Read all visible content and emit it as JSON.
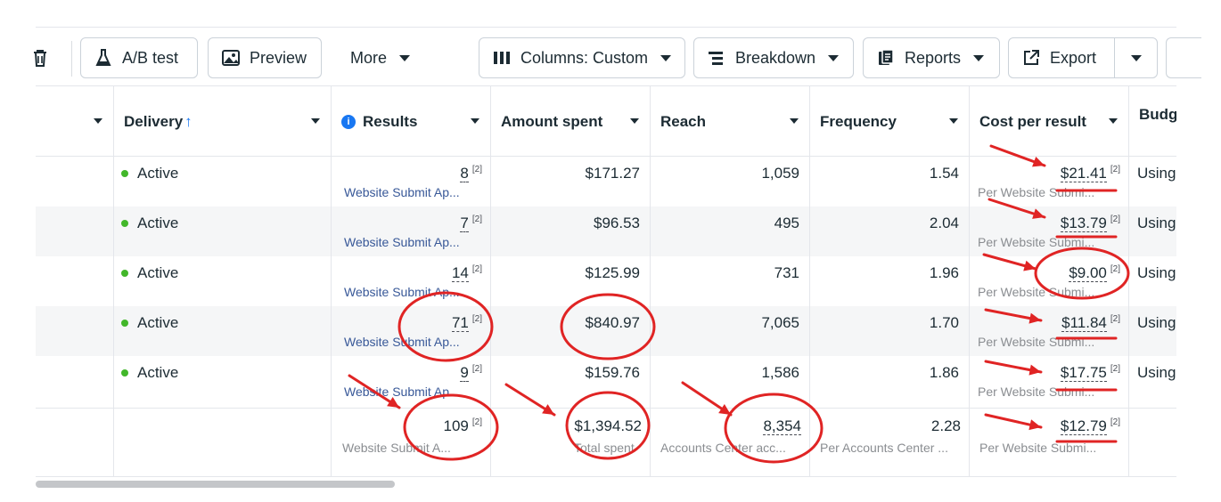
{
  "toolbar": {
    "ab_test": "A/B test",
    "preview": "Preview",
    "more": "More",
    "columns": "Columns: Custom",
    "breakdown": "Breakdown",
    "reports": "Reports",
    "export": "Export"
  },
  "headers": {
    "delivery": "Delivery",
    "delivery_arrow": "↑",
    "results": "Results",
    "amount_spent": "Amount spent",
    "reach": "Reach",
    "frequency": "Frequency",
    "cost_per_result": "Cost per result",
    "budget": "Budg"
  },
  "rows": [
    {
      "status": "Active",
      "results": "8",
      "results_label": "Website Submit Ap...",
      "spent": "$171.27",
      "reach": "1,059",
      "frequency": "1.54",
      "cpr": "$21.41",
      "cpr_label": "Per Website Submi...",
      "budget": "Using"
    },
    {
      "status": "Active",
      "results": "7",
      "results_label": "Website Submit Ap...",
      "spent": "$96.53",
      "reach": "495",
      "frequency": "2.04",
      "cpr": "$13.79",
      "cpr_label": "Per Website Submi...",
      "budget": "Using"
    },
    {
      "status": "Active",
      "results": "14",
      "results_label": "Website Submit Ap...",
      "spent": "$125.99",
      "reach": "731",
      "frequency": "1.96",
      "cpr": "$9.00",
      "cpr_label": "Per Website Submi...",
      "budget": "Using"
    },
    {
      "status": "Active",
      "results": "71",
      "results_label": "Website Submit Ap...",
      "spent": "$840.97",
      "reach": "7,065",
      "frequency": "1.70",
      "cpr": "$11.84",
      "cpr_label": "Per Website Submi...",
      "budget": "Using"
    },
    {
      "status": "Active",
      "results": "9",
      "results_label": "Website Submit Ap...",
      "spent": "$159.76",
      "reach": "1,586",
      "frequency": "1.86",
      "cpr": "$17.75",
      "cpr_label": "Per Website Submi...",
      "budget": "Using"
    }
  ],
  "footnote": "[2]",
  "totals": {
    "results": "109",
    "results_label": "Website Submit A...",
    "spent": "$1,394.52",
    "spent_label": "Total spent",
    "reach": "8,354",
    "reach_label": "Accounts Center acc...",
    "frequency": "2.28",
    "frequency_label": "Per Accounts Center ...",
    "cpr": "$12.79",
    "cpr_label": "Per Website Submi..."
  },
  "annotation_color": "#e02424"
}
